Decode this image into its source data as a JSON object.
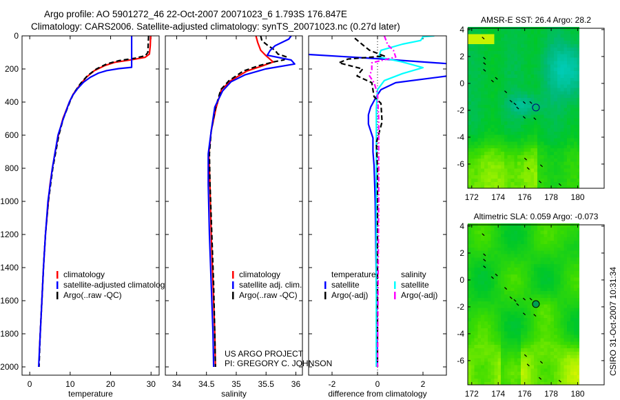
{
  "header": {
    "line1": "Argo profile: AO 5901272_46 22-Oct-2007 20071023_6 1.793S 176.847E",
    "line2": "Climatology: CARS2006. Satellite-adjusted climatology: synTS_20071023.nc (0.27d later)"
  },
  "credits": {
    "project": "US ARGO PROJECT",
    "pi": "PI: GREGORY C. JOHNSON",
    "stamp": "CSIRO 31-Oct-2007 10:31:34"
  },
  "colors": {
    "climatology": "#ff0000",
    "satellite": "#0000ff",
    "argo": "#000000",
    "sal_satellite": "#00ffff",
    "sal_argo": "#ff00ff"
  },
  "chart_data": [
    {
      "type": "line",
      "id": "temperature",
      "xlabel": "temperature",
      "ylabel": "",
      "xlim": [
        -1.9,
        32
      ],
      "ylim": [
        0,
        2050
      ],
      "y_inverted": true,
      "xticks": [
        0,
        10,
        20,
        30
      ],
      "yticks": [
        0,
        200,
        400,
        600,
        800,
        1000,
        1200,
        1400,
        1600,
        1800,
        2000
      ],
      "legend": [
        "climatology",
        "satellite-adjusted climatology",
        "Argo(..raw -QC)"
      ],
      "series": [
        {
          "name": "climatology",
          "color": "#ff0000",
          "style": "solid",
          "points": [
            [
              0,
              29.9
            ],
            [
              60,
              29.8
            ],
            [
              110,
              29.6
            ],
            [
              130,
              28.5
            ],
            [
              145,
              25
            ],
            [
              160,
              21
            ],
            [
              180,
              18.5
            ],
            [
              210,
              16
            ],
            [
              250,
              14
            ],
            [
              300,
              12.3
            ],
            [
              350,
              10.8
            ],
            [
              400,
              9.8
            ],
            [
              500,
              8.2
            ],
            [
              600,
              7.1
            ],
            [
              700,
              6.3
            ],
            [
              800,
              5.6
            ],
            [
              900,
              5
            ],
            [
              1000,
              4.6
            ],
            [
              1200,
              3.9
            ],
            [
              1400,
              3.4
            ],
            [
              1600,
              3.0
            ],
            [
              1800,
              2.6
            ],
            [
              1900,
              2.4
            ]
          ]
        },
        {
          "name": "Argo(..raw -QC)",
          "color": "#000000",
          "style": "dashed",
          "points": [
            [
              0,
              29.4
            ],
            [
              100,
              29.2
            ],
            [
              120,
              28.6
            ],
            [
              135,
              26
            ],
            [
              150,
              22
            ],
            [
              170,
              19
            ],
            [
              200,
              16.5
            ],
            [
              240,
              14.3
            ],
            [
              290,
              12.5
            ],
            [
              350,
              10.8
            ],
            [
              400,
              9.9
            ],
            [
              500,
              8.3
            ],
            [
              600,
              7.2
            ],
            [
              800,
              5.7
            ],
            [
              1000,
              4.6
            ],
            [
              1200,
              3.9
            ],
            [
              1400,
              3.4
            ],
            [
              1600,
              3.0
            ],
            [
              1800,
              2.6
            ],
            [
              2000,
              2.3
            ]
          ]
        },
        {
          "name": "satellite-adjusted climatology",
          "color": "#0000ff",
          "style": "solid",
          "points": [
            [
              0,
              25.2
            ],
            [
              190,
              25.2
            ],
            [
              198,
              22
            ],
            [
              210,
              19
            ],
            [
              225,
              17
            ],
            [
              250,
              15
            ],
            [
              280,
              13.3
            ],
            [
              320,
              11.8
            ],
            [
              360,
              10.6
            ],
            [
              400,
              9.8
            ],
            [
              500,
              8.3
            ],
            [
              600,
              7.0
            ],
            [
              800,
              5.6
            ],
            [
              1000,
              4.5
            ],
            [
              1200,
              3.9
            ],
            [
              1400,
              3.4
            ],
            [
              1600,
              3.0
            ],
            [
              1800,
              2.6
            ],
            [
              2000,
              2.2
            ]
          ]
        }
      ]
    },
    {
      "type": "line",
      "id": "salinity",
      "xlabel": "salinity",
      "xlim": [
        33.81,
        36.11
      ],
      "ylim": [
        0,
        2050
      ],
      "y_inverted": true,
      "xticks": [
        34,
        34.5,
        35,
        35.5,
        36
      ],
      "legend": [
        "climatology",
        "satellite adj. clim.",
        "Argo(..raw -QC)"
      ],
      "series": [
        {
          "name": "climatology",
          "color": "#ff0000",
          "style": "solid",
          "points": [
            [
              0,
              35.33
            ],
            [
              40,
              35.36
            ],
            [
              87,
              35.41
            ],
            [
              120,
              35.5
            ],
            [
              158,
              35.62
            ],
            [
              180,
              35.45
            ],
            [
              212,
              35.18
            ],
            [
              270,
              34.91
            ],
            [
              325,
              34.75
            ],
            [
              437,
              34.66
            ],
            [
              575,
              34.58
            ],
            [
              712,
              34.54
            ],
            [
              920,
              34.56
            ],
            [
              1200,
              34.58
            ],
            [
              1500,
              34.61
            ],
            [
              1800,
              34.64
            ],
            [
              2000,
              34.65
            ]
          ]
        },
        {
          "name": "Argo(..raw -QC)",
          "color": "#000000",
          "style": "dashed",
          "points": [
            [
              0,
              35.41
            ],
            [
              30,
              35.43
            ],
            [
              58,
              35.53
            ],
            [
              87,
              35.65
            ],
            [
              110,
              35.7
            ],
            [
              128,
              35.85
            ],
            [
              145,
              35.8
            ],
            [
              158,
              35.62
            ],
            [
              180,
              35.38
            ],
            [
              212,
              35.12
            ],
            [
              270,
              34.88
            ],
            [
              325,
              34.74
            ],
            [
              437,
              34.65
            ],
            [
              575,
              34.58
            ],
            [
              712,
              34.55
            ],
            [
              900,
              34.56
            ],
            [
              1200,
              34.59
            ],
            [
              1500,
              34.62
            ],
            [
              1800,
              34.64
            ],
            [
              2000,
              34.65
            ]
          ]
        },
        {
          "name": "satellite adj. clim.",
          "color": "#0000ff",
          "style": "solid",
          "points": [
            [
              0,
              35.92
            ],
            [
              20,
              35.88
            ],
            [
              60,
              35.65
            ],
            [
              87,
              35.57
            ],
            [
              117,
              35.52
            ],
            [
              146,
              35.92
            ],
            [
              170,
              35.98
            ],
            [
              200,
              35.49
            ],
            [
              235,
              35.15
            ],
            [
              278,
              34.91
            ],
            [
              333,
              34.77
            ],
            [
              430,
              34.64
            ],
            [
              575,
              34.58
            ],
            [
              712,
              34.53
            ],
            [
              900,
              34.53
            ],
            [
              1200,
              34.55
            ],
            [
              1500,
              34.58
            ],
            [
              1800,
              34.61
            ],
            [
              2000,
              34.62
            ]
          ]
        }
      ]
    },
    {
      "type": "line",
      "id": "difference",
      "xlabel": "difference from climatology",
      "xlim": [
        -3.03,
        3.03
      ],
      "ylim": [
        0,
        2050
      ],
      "y_inverted": true,
      "xticks": [
        -2,
        0,
        2
      ],
      "legend_headers": [
        "temperature",
        "salinity"
      ],
      "legend": [
        "satellite",
        "Argo(-adj)",
        "satellite",
        "Argo(-adj)"
      ],
      "series": [
        {
          "name": "temperature satellite",
          "color": "#0000ff",
          "style": "solid",
          "points": [
            [
              0,
              -4.6
            ],
            [
              100,
              -4.5
            ],
            [
              138,
              0
            ],
            [
              175,
              3.8
            ],
            [
              200,
              5
            ],
            [
              215,
              4.5
            ],
            [
              242,
              3.1
            ],
            [
              283,
              0.8
            ],
            [
              325,
              0.15
            ],
            [
              367,
              -0.05
            ],
            [
              430,
              -0.3
            ],
            [
              477,
              -0.4
            ],
            [
              533,
              -0.4
            ],
            [
              617,
              -0.2
            ],
            [
              700,
              -0.2
            ],
            [
              783,
              -0.15
            ],
            [
              1000,
              -0.1
            ],
            [
              1500,
              -0.05
            ],
            [
              2000,
              0
            ]
          ]
        },
        {
          "name": "salinity satellite",
          "color": "#00ffff",
          "style": "solid",
          "points": [
            [
              0,
              2.5
            ],
            [
              5,
              2.0
            ],
            [
              28,
              1.9
            ],
            [
              50,
              1.1
            ],
            [
              87,
              0.15
            ],
            [
              128,
              0.05
            ],
            [
              158,
              1.1
            ],
            [
              192,
              2.0
            ],
            [
              228,
              1.1
            ],
            [
              270,
              0.3
            ],
            [
              325,
              0.0
            ],
            [
              437,
              -0.05
            ],
            [
              1000,
              -0.05
            ],
            [
              2000,
              -0.05
            ]
          ]
        },
        {
          "name": "temperature Argo(-adj)",
          "color": "#000000",
          "style": "dashed",
          "points": [
            [
              14,
              -1.0
            ],
            [
              60,
              -0.6
            ],
            [
              87,
              -0.35
            ],
            [
              122,
              0.3
            ],
            [
              140,
              -1.3
            ],
            [
              163,
              -1.7
            ],
            [
              200,
              -0.65
            ],
            [
              242,
              -0.9
            ],
            [
              283,
              -0.25
            ],
            [
              367,
              -0.15
            ],
            [
              408,
              0.15
            ],
            [
              520,
              0.2
            ],
            [
              645,
              -0.05
            ],
            [
              800,
              0.0
            ],
            [
              2000,
              0.0
            ]
          ]
        },
        {
          "name": "salinity Argo(-adj)",
          "color": "#ff00ff",
          "style": "dashdot",
          "points": [
            [
              0,
              0.3
            ],
            [
              55,
              0.45
            ],
            [
              87,
              0.7
            ],
            [
              128,
              0.8
            ],
            [
              163,
              -0.25
            ],
            [
              205,
              -0.25
            ],
            [
              242,
              -0.35
            ],
            [
              283,
              -0.15
            ],
            [
              350,
              0
            ],
            [
              500,
              0.05
            ],
            [
              1000,
              0.05
            ],
            [
              2000,
              0.0
            ]
          ]
        }
      ]
    },
    {
      "type": "heatmap",
      "id": "sst_map",
      "title": "AMSR-E SST: 26.4 Argo: 28.2",
      "xlim": [
        171.7,
        182
      ],
      "ylim": [
        -7.8,
        4.1
      ],
      "data_lon_max": 180.1,
      "xticks": [
        172,
        174,
        176,
        178,
        180
      ],
      "yticks": [
        4,
        2,
        0,
        -2,
        -4,
        -6
      ],
      "float_position": {
        "lon": 176.847,
        "lat": -1.793
      }
    },
    {
      "type": "heatmap",
      "id": "sla_map",
      "title": "Altimetric SLA: 0.059 Argo: -0.073",
      "xlim": [
        171.7,
        182
      ],
      "ylim": [
        -7.8,
        4.1
      ],
      "data_lon_max": 180.1,
      "xticks": [
        172,
        174,
        176,
        178,
        180
      ],
      "yticks": [
        4,
        2,
        0,
        -2,
        -4,
        -6
      ],
      "float_position": {
        "lon": 176.847,
        "lat": -1.793
      }
    }
  ]
}
